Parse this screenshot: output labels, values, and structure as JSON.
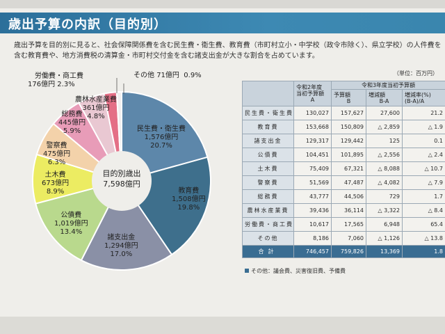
{
  "header": {
    "title": "歳出予算の内訳（目的別）"
  },
  "intro": {
    "line1": "歳出予算を目的別に見ると、社会保障関係費を含む民生費・衛生費、教育費（市町村立小・中学校（政令市除く）、県立学校）の人件費を",
    "line2": "含む教育費や、地方消費税の清算金・市町村交付金を含む諸支出金が大きな割合を占めています。"
  },
  "chart_data": {
    "type": "pie",
    "title": "目的別歳出",
    "total_label": "7,598億円",
    "slices": [
      {
        "name": "民生費・衛生費",
        "amount": "1,576億円",
        "percent": "20.7%",
        "value": 20.7,
        "color": "#5d87aa"
      },
      {
        "name": "教育費",
        "amount": "1,508億円",
        "percent": "19.8%",
        "value": 19.8,
        "color": "#3e6f8c"
      },
      {
        "name": "諸支出金",
        "amount": "1,294億円",
        "percent": "17.0%",
        "value": 17.0,
        "color": "#8a90a6"
      },
      {
        "name": "公債費",
        "amount": "1,019億円",
        "percent": "13.4%",
        "value": 13.4,
        "color": "#b9d98d"
      },
      {
        "name": "土木費",
        "amount": "673億円",
        "percent": "8.9%",
        "value": 8.9,
        "color": "#ecec62"
      },
      {
        "name": "警察費",
        "amount": "475億円",
        "percent": "6.3%",
        "value": 6.3,
        "color": "#f3d2aa"
      },
      {
        "name": "総務費",
        "amount": "445億円",
        "percent": "5.9%",
        "value": 5.9,
        "color": "#e89cb8"
      },
      {
        "name": "農林水産業費",
        "amount": "361億円",
        "percent": "4.8%",
        "value": 4.8,
        "color": "#e9c8d2"
      },
      {
        "name": "労働費・商工費",
        "amount": "176億円",
        "percent": "2.3%",
        "value": 2.3,
        "color": "#e46f86"
      },
      {
        "name": "その他",
        "amount": "71億円",
        "percent": "0.9%",
        "value": 0.9,
        "color": "#f0eeee"
      }
    ]
  },
  "table": {
    "unit": "（単位：百万円）",
    "head": {
      "col_a1": "令和2年度",
      "col_a2": "当初予算額",
      "col_a3": "A",
      "group_r3": "令和3年度当初予算額",
      "col_b1": "予算額",
      "col_b2": "B",
      "col_c1": "増減額",
      "col_c2": "B-A",
      "col_d1": "増減率(%)",
      "col_d2": "(B-A)/A"
    },
    "rows": [
      {
        "name": "民生費・衛生費",
        "a": "130,027",
        "b": "157,627",
        "c": "27,600",
        "d": "21.2"
      },
      {
        "name": "教育費",
        "a": "153,668",
        "b": "150,809",
        "c": "△ 2,859",
        "d": "△ 1.9"
      },
      {
        "name": "諸支出金",
        "a": "129,317",
        "b": "129,442",
        "c": "125",
        "d": "0.1"
      },
      {
        "name": "公債費",
        "a": "104,451",
        "b": "101,895",
        "c": "△ 2,556",
        "d": "△ 2.4"
      },
      {
        "name": "土木費",
        "a": "75,409",
        "b": "67,321",
        "c": "△ 8,088",
        "d": "△ 10.7"
      },
      {
        "name": "警察費",
        "a": "51,569",
        "b": "47,487",
        "c": "△ 4,082",
        "d": "△ 7.9"
      },
      {
        "name": "総務費",
        "a": "43,777",
        "b": "44,506",
        "c": "729",
        "d": "1.7"
      },
      {
        "name": "農林水産業費",
        "a": "39,436",
        "b": "36,114",
        "c": "△ 3,322",
        "d": "△ 8.4"
      },
      {
        "name": "労働費・商工費",
        "a": "10,617",
        "b": "17,565",
        "c": "6,948",
        "d": "65.4"
      },
      {
        "name": "その他",
        "a": "8,186",
        "b": "7,060",
        "c": "△ 1,126",
        "d": "△ 13.8"
      }
    ],
    "total": {
      "name": "合計",
      "a": "746,457",
      "b": "759,826",
      "c": "13,369",
      "d": "1.8"
    },
    "footnote": "その他：議会費、災害復旧費、予備費"
  }
}
